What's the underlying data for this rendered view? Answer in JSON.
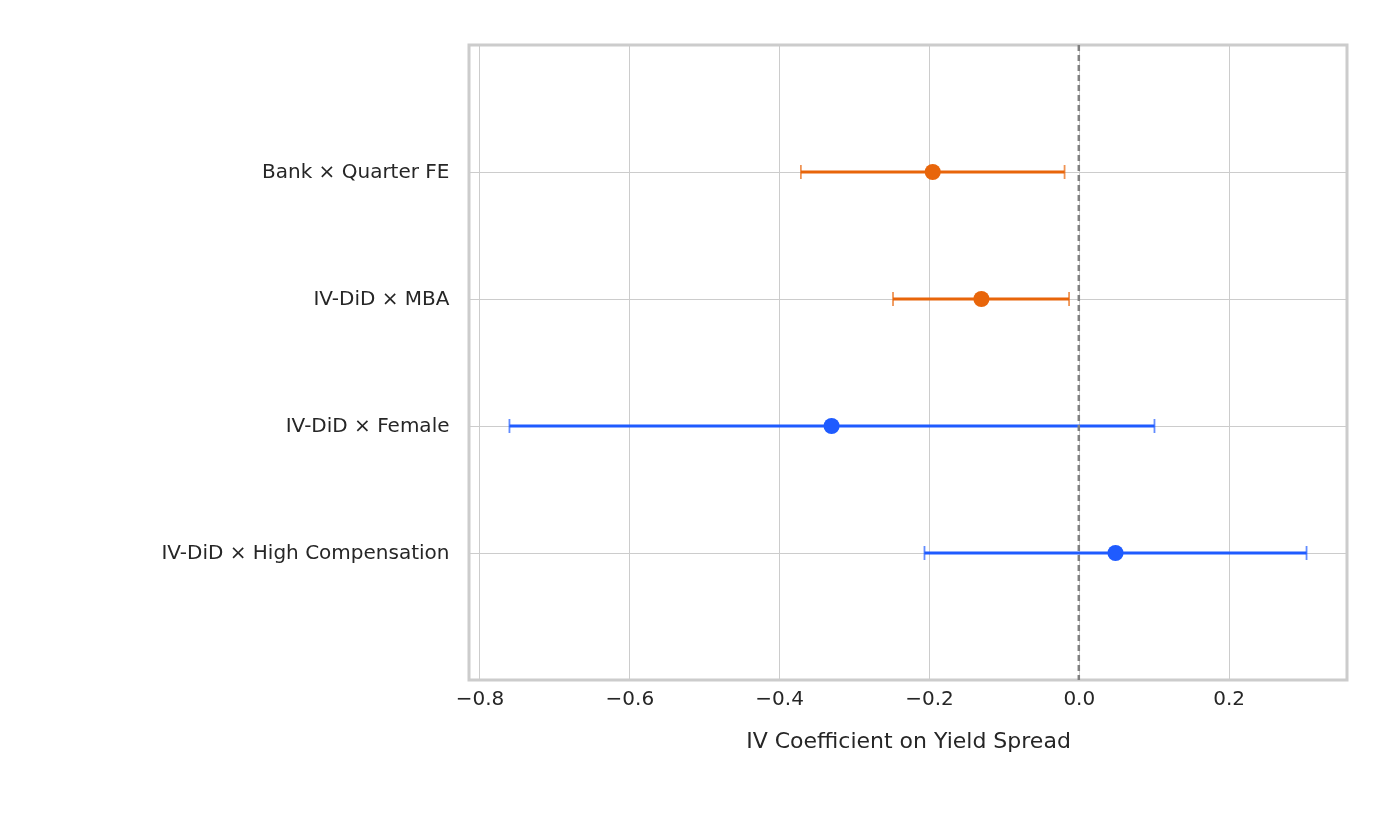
{
  "chart_data": {
    "type": "scatter",
    "orientation": "horizontal",
    "xlabel": "IV Coefficient on Yield Spread",
    "categories": [
      "Bank × Quarter FE",
      "IV-DiD × MBA",
      "IV-DiD × Female",
      "IV-DiD × High Compensation"
    ],
    "series": [
      {
        "color": "#e8650a",
        "values": [
          -0.195,
          -0.13,
          null,
          null
        ],
        "errors": [
          [
            -0.371,
            -0.019
          ],
          [
            -0.248,
            -0.013
          ],
          null,
          null
        ]
      },
      {
        "color": "#1f5bff",
        "values": [
          null,
          null,
          -0.33,
          0.049
        ],
        "errors": [
          null,
          null,
          [
            -0.76,
            0.101
          ],
          [
            -0.206,
            0.304
          ]
        ]
      }
    ],
    "xlim": [
      -0.814,
      0.358
    ],
    "xticks": [
      -0.8,
      -0.6,
      -0.4,
      -0.2,
      {
        "value": 0,
        "label": "0.0"
      },
      0.2
    ],
    "ref_lines": [
      {
        "axis": "x",
        "value": 0,
        "color": "#808080",
        "line_style": "dashed"
      }
    ],
    "grid": true,
    "marker": "circle"
  }
}
